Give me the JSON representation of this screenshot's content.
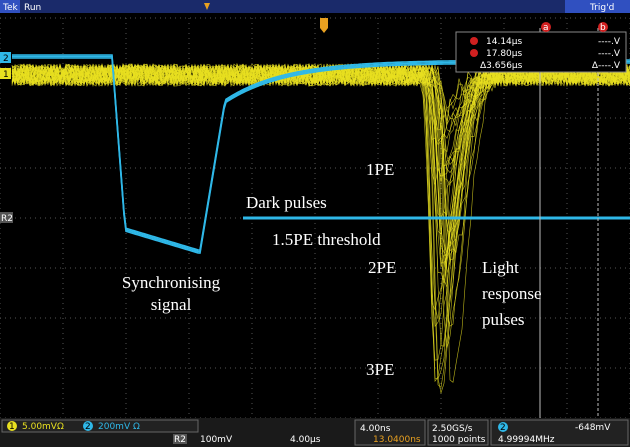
{
  "header": {
    "brand": "Tek",
    "status": "Run",
    "trigger": "Trig'd"
  },
  "cursors": {
    "a_label": "a",
    "b_label": "b",
    "a_time": "14.14µs",
    "b_time": "17.80µs",
    "delta_time": "Δ3.656µs",
    "a_volts": "----.V",
    "b_volts": "----.V",
    "delta_volts": "Δ----.V"
  },
  "channel_markers": {
    "ch1": "1",
    "ch2": "2",
    "ref": "R2"
  },
  "annotations": {
    "pe1": "1PE",
    "dark": "Dark pulses",
    "threshold": "1.5PE threshold",
    "pe2": "2PE",
    "pe3": "3PE",
    "sync": [
      "Synchronising",
      "signal"
    ],
    "light": [
      "Light",
      "response",
      "pulses"
    ]
  },
  "footer": {
    "ch1_num": "1",
    "ch1_scale": "5.00mVΩ",
    "ch2_num": "2",
    "ch2_scale": "200mV Ω",
    "ref_num": "R2",
    "ref_scale": "100mV",
    "ref_time": "4.00µs",
    "timebase": "4.00ns",
    "position": "13.0400ns",
    "sample_rate": "2.50GS/s",
    "record": "1000 points",
    "trig_ch": "2",
    "trig_level": "-648mV",
    "frequency": "4.99994MHz"
  }
}
